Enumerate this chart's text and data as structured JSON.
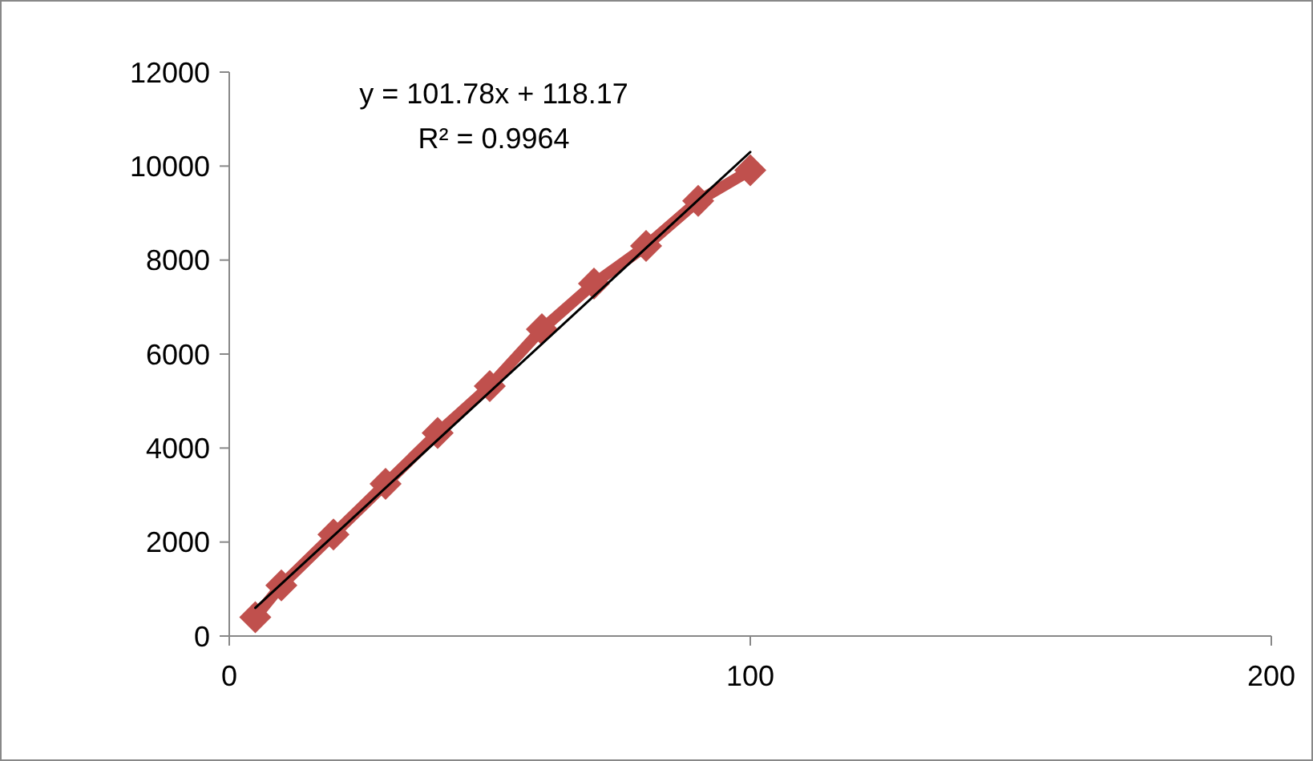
{
  "chart_data": {
    "type": "line",
    "xlim": [
      0,
      200
    ],
    "xticks": [
      0,
      100,
      200
    ],
    "ylim": [
      0,
      12000
    ],
    "yticks": [
      0,
      2000,
      4000,
      6000,
      8000,
      10000,
      12000
    ],
    "marker": "diamond",
    "annotations": [
      "y = 101.78x + 118.17",
      "R² = 0.9964"
    ],
    "series": [
      {
        "color": "#c0504d",
        "x": [
          5,
          10,
          20,
          30,
          40,
          50,
          60,
          70,
          80,
          90,
          100
        ],
        "values": [
          400,
          1080,
          2160,
          3240,
          4320,
          5320,
          6530,
          7500,
          8300,
          9260,
          9910
        ]
      },
      {
        "color": "#000000",
        "marker": "none",
        "x": [
          5,
          100
        ],
        "values": [
          600,
          10300
        ]
      }
    ]
  }
}
